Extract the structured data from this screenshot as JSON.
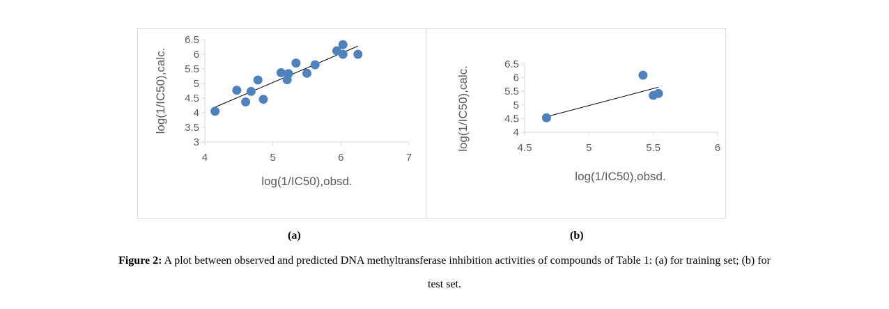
{
  "chart_data": [
    {
      "type": "scatter",
      "panel_label": "(a)",
      "xlabel": "log(1/IC50),obsd.",
      "ylabel": "log(1/IC50),calc.",
      "xlim": [
        4,
        7
      ],
      "ylim": [
        3,
        6.5
      ],
      "xticks": [
        4,
        5,
        6,
        7
      ],
      "yticks": [
        3,
        3.5,
        4,
        4.5,
        5,
        5.5,
        6,
        6.5
      ],
      "x": [
        4.15,
        4.47,
        4.6,
        4.68,
        4.78,
        4.86,
        5.12,
        5.21,
        5.23,
        5.34,
        5.5,
        5.62,
        5.94,
        6.03,
        6.03,
        6.25
      ],
      "y": [
        4.05,
        4.77,
        4.37,
        4.73,
        5.12,
        4.46,
        5.37,
        5.13,
        5.34,
        5.7,
        5.35,
        5.64,
        6.12,
        6.33,
        6.0,
        6.0
      ],
      "trendline": {
        "x": [
          4.15,
          6.25
        ],
        "y": [
          4.19,
          6.28
        ]
      },
      "marker_color": "#4f81bd",
      "grid": false
    },
    {
      "type": "scatter",
      "panel_label": "(b)",
      "xlabel": "log(1/IC50),obsd.",
      "ylabel": "log(1/IC50),calc.",
      "xlim": [
        4.5,
        6
      ],
      "ylim": [
        4,
        6.5
      ],
      "xticks": [
        4.5,
        5,
        5.5,
        6
      ],
      "yticks": [
        4,
        4.5,
        5,
        5.5,
        6,
        6.5
      ],
      "x": [
        4.67,
        5.42,
        5.5,
        5.54
      ],
      "y": [
        4.53,
        6.09,
        5.35,
        5.42
      ],
      "trendline": {
        "x": [
          4.68,
          5.54
        ],
        "y": [
          4.58,
          5.65
        ]
      },
      "marker_color": "#4f81bd",
      "grid": false
    }
  ],
  "caption": {
    "bold": "Figure 2:",
    "text": " A plot between observed and predicted DNA methyltransferase inhibition activities of compounds of Table 1: (a) for training set; (b) for",
    "line2": "test set."
  }
}
